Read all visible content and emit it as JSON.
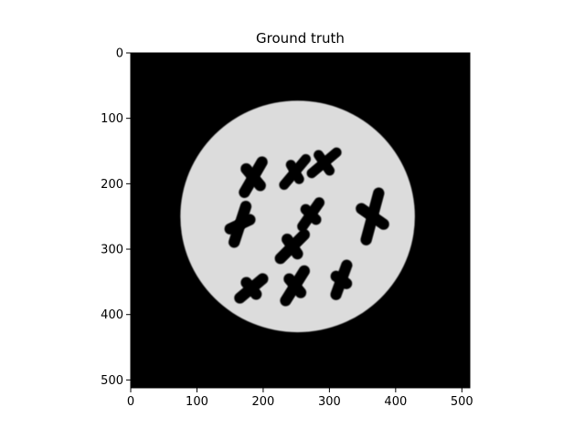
{
  "chart_data": {
    "type": "heatmap",
    "title": "Ground truth",
    "xlabel": "",
    "ylabel": "",
    "xlim": [
      0,
      512
    ],
    "ylim": [
      512,
      0
    ],
    "x_ticks": [
      0,
      100,
      200,
      300,
      400,
      500
    ],
    "y_ticks": [
      0,
      100,
      200,
      300,
      400,
      500
    ],
    "x_tick_labels": [
      "0",
      "100",
      "200",
      "300",
      "400",
      "500"
    ],
    "y_tick_labels": [
      "0",
      "100",
      "200",
      "300",
      "400",
      "500"
    ],
    "colormap": "gray",
    "background_color": "#000000",
    "disk": {
      "cx": 252,
      "cy": 250,
      "r": 177,
      "color": "#dcdcdc"
    },
    "holes": [
      {
        "x": 185,
        "y": 190,
        "len": 70,
        "w": 17,
        "angle": 60
      },
      {
        "x": 185,
        "y": 190,
        "len": 50,
        "w": 17,
        "angle": -50
      },
      {
        "x": 248,
        "y": 182,
        "len": 66,
        "w": 15,
        "angle": 50
      },
      {
        "x": 248,
        "y": 182,
        "len": 40,
        "w": 15,
        "angle": -60
      },
      {
        "x": 292,
        "y": 168,
        "len": 64,
        "w": 15,
        "angle": 40
      },
      {
        "x": 292,
        "y": 168,
        "len": 44,
        "w": 15,
        "angle": -55
      },
      {
        "x": 165,
        "y": 262,
        "len": 74,
        "w": 17,
        "angle": 72
      },
      {
        "x": 165,
        "y": 262,
        "len": 50,
        "w": 17,
        "angle": 25
      },
      {
        "x": 272,
        "y": 247,
        "len": 60,
        "w": 16,
        "angle": 55
      },
      {
        "x": 272,
        "y": 247,
        "len": 38,
        "w": 16,
        "angle": -45
      },
      {
        "x": 365,
        "y": 250,
        "len": 90,
        "w": 17,
        "angle": 75
      },
      {
        "x": 365,
        "y": 250,
        "len": 58,
        "w": 17,
        "angle": -35
      },
      {
        "x": 244,
        "y": 296,
        "len": 68,
        "w": 17,
        "angle": 45
      },
      {
        "x": 244,
        "y": 296,
        "len": 44,
        "w": 17,
        "angle": -55
      },
      {
        "x": 182,
        "y": 360,
        "len": 62,
        "w": 17,
        "angle": 40
      },
      {
        "x": 182,
        "y": 360,
        "len": 40,
        "w": 17,
        "angle": -50
      },
      {
        "x": 248,
        "y": 356,
        "len": 70,
        "w": 17,
        "angle": 58
      },
      {
        "x": 248,
        "y": 356,
        "len": 44,
        "w": 17,
        "angle": -50
      },
      {
        "x": 318,
        "y": 347,
        "len": 64,
        "w": 17,
        "angle": 70
      },
      {
        "x": 318,
        "y": 347,
        "len": 36,
        "w": 17,
        "angle": -35
      }
    ]
  }
}
